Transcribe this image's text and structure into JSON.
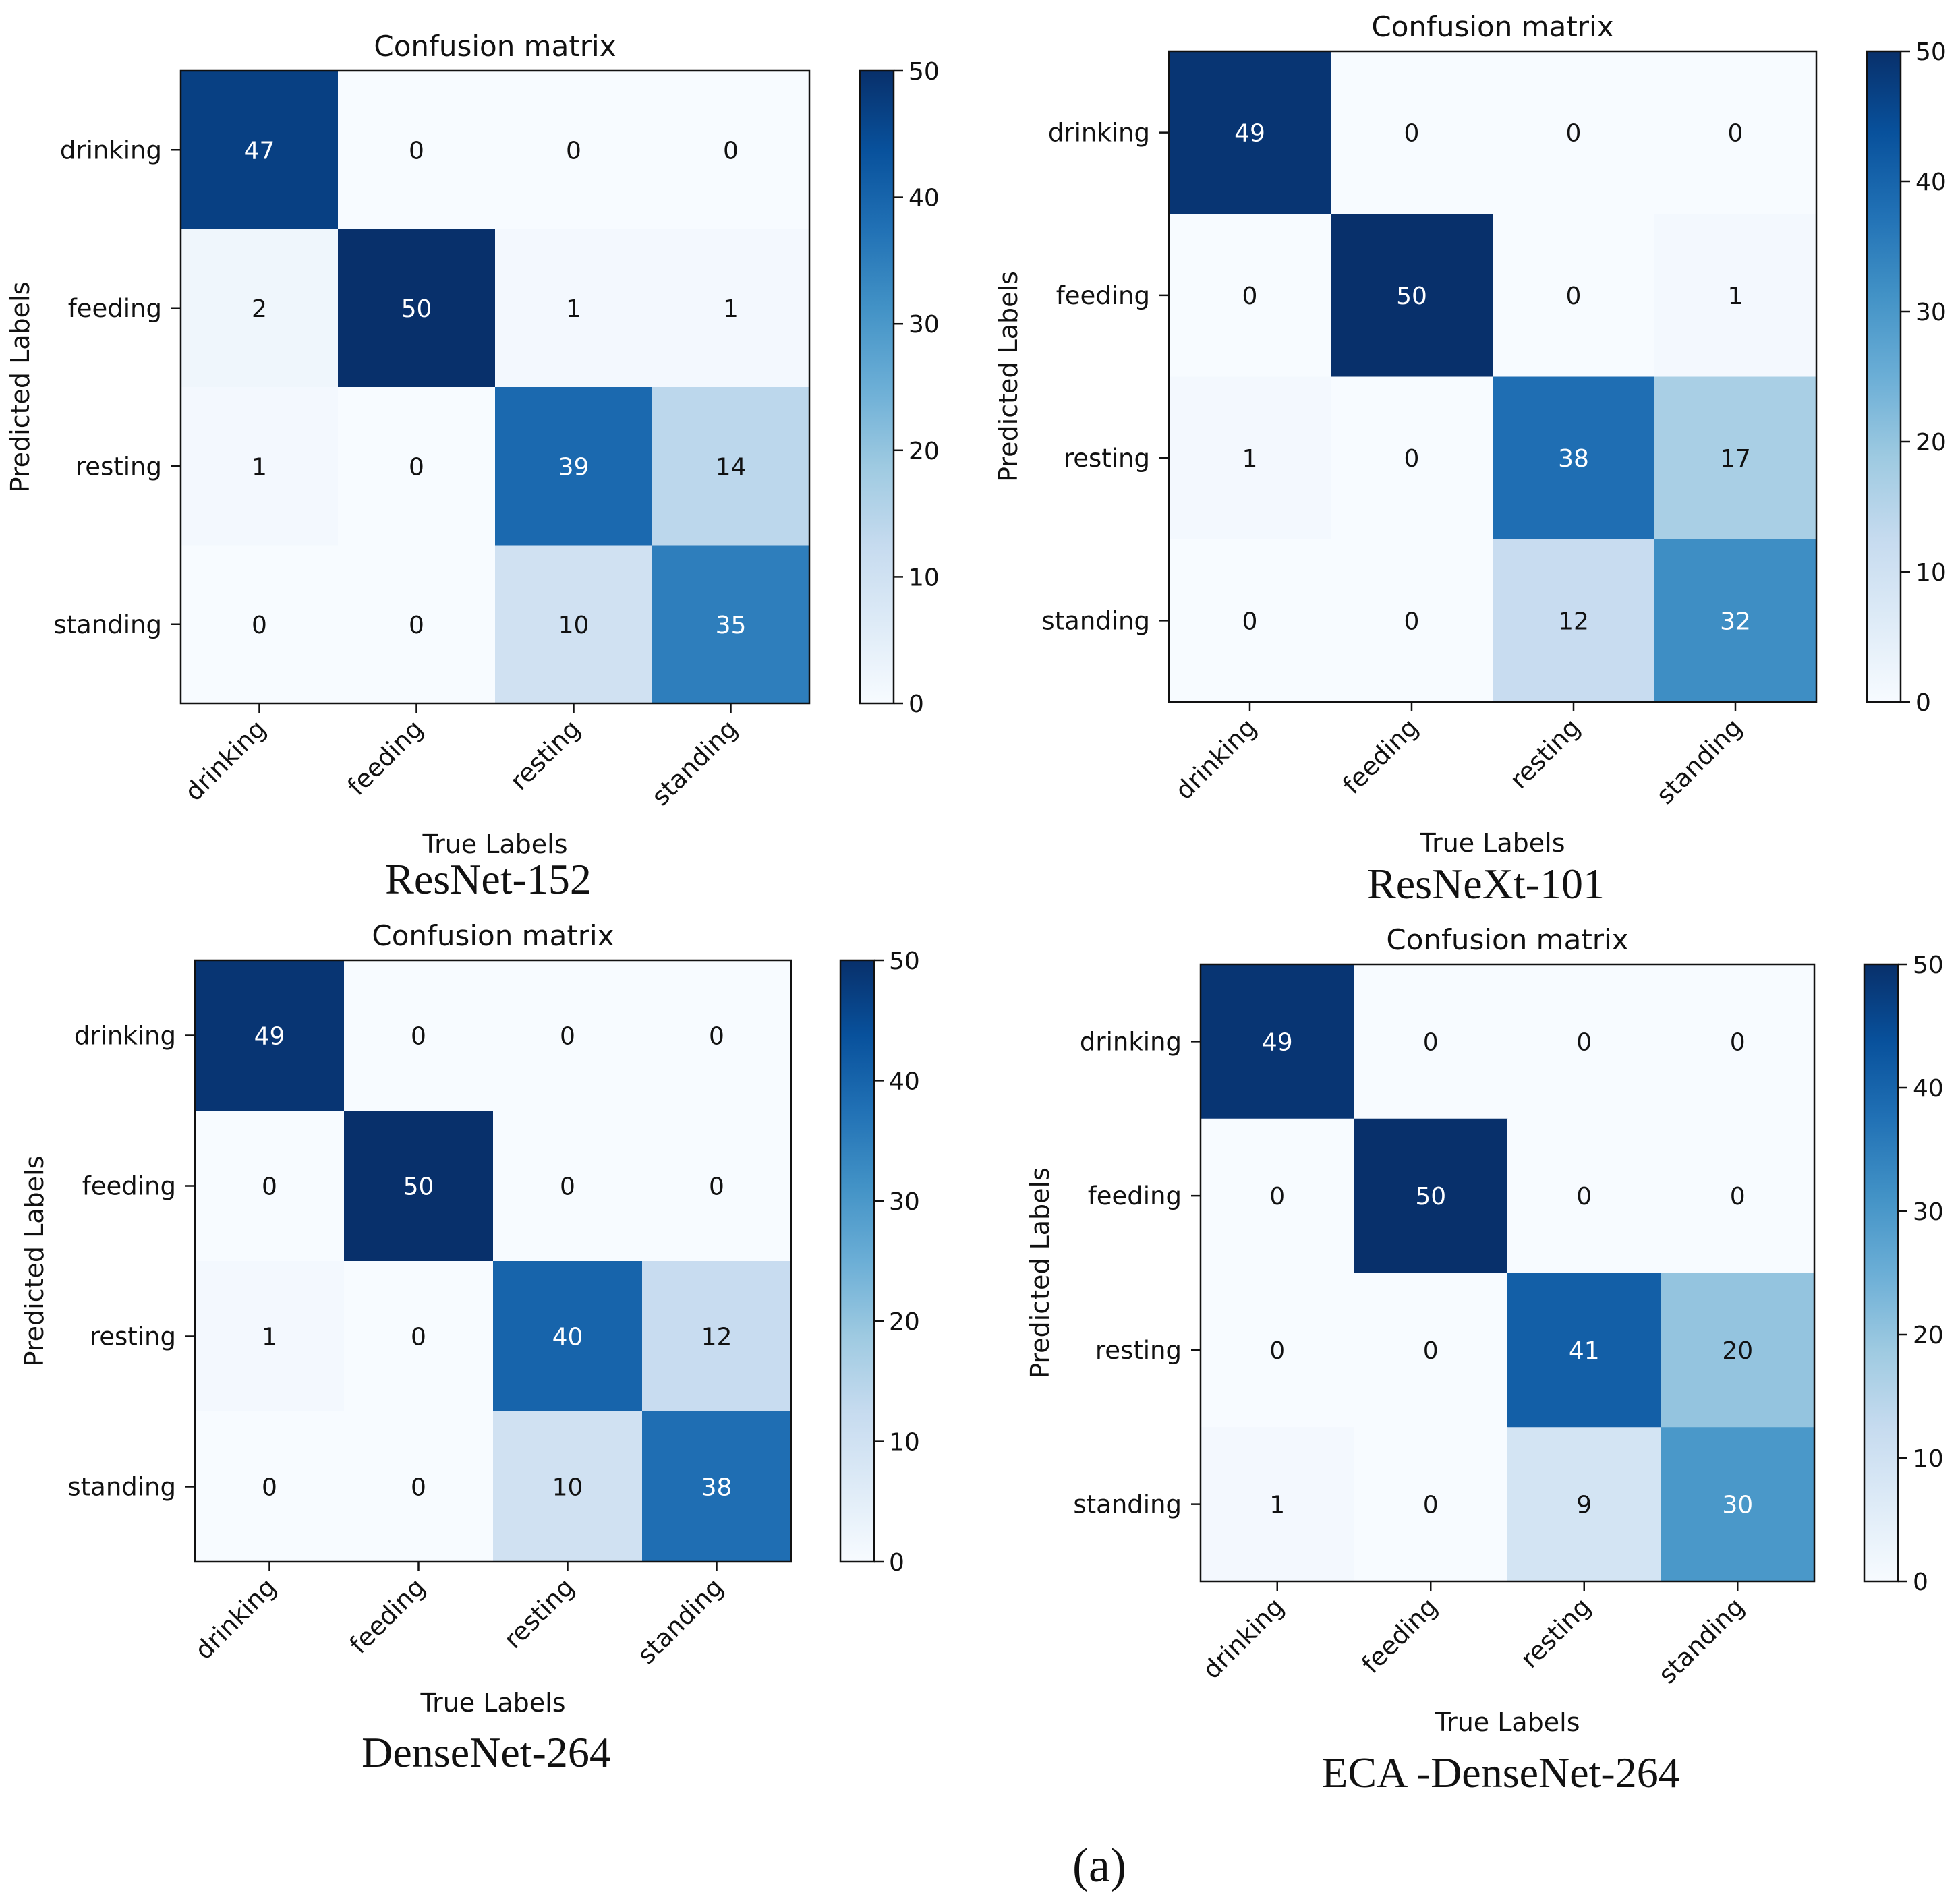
{
  "figure_label": "(a)",
  "chart_data": [
    {
      "type": "heatmap",
      "title": "Confusion matrix",
      "caption": "ResNet-152",
      "xlabel": "True Labels",
      "ylabel": "Predicted Labels",
      "x_categories": [
        "drinking",
        "feeding",
        "resting",
        "standing"
      ],
      "y_categories": [
        "drinking",
        "feeding",
        "resting",
        "standing"
      ],
      "values": [
        [
          47,
          0,
          0,
          0
        ],
        [
          2,
          50,
          1,
          1
        ],
        [
          1,
          0,
          39,
          14
        ],
        [
          0,
          0,
          10,
          35
        ]
      ],
      "colorbar": {
        "range": [
          0,
          50
        ],
        "ticks": [
          0,
          10,
          20,
          30,
          40,
          50
        ],
        "colormap": "Blues"
      }
    },
    {
      "type": "heatmap",
      "title": "Confusion matrix",
      "caption": "ResNeXt-101",
      "xlabel": "True Labels",
      "ylabel": "Predicted Labels",
      "x_categories": [
        "drinking",
        "feeding",
        "resting",
        "standing"
      ],
      "y_categories": [
        "drinking",
        "feeding",
        "resting",
        "standing"
      ],
      "values": [
        [
          49,
          0,
          0,
          0
        ],
        [
          0,
          50,
          0,
          1
        ],
        [
          1,
          0,
          38,
          17
        ],
        [
          0,
          0,
          12,
          32
        ]
      ],
      "colorbar": {
        "range": [
          0,
          50
        ],
        "ticks": [
          0,
          10,
          20,
          30,
          40,
          50
        ],
        "colormap": "Blues"
      }
    },
    {
      "type": "heatmap",
      "title": "Confusion matrix",
      "caption": "DenseNet-264",
      "xlabel": "True Labels",
      "ylabel": "Predicted Labels",
      "x_categories": [
        "drinking",
        "feeding",
        "resting",
        "standing"
      ],
      "y_categories": [
        "drinking",
        "feeding",
        "resting",
        "standing"
      ],
      "values": [
        [
          49,
          0,
          0,
          0
        ],
        [
          0,
          50,
          0,
          0
        ],
        [
          1,
          0,
          40,
          12
        ],
        [
          0,
          0,
          10,
          38
        ]
      ],
      "colorbar": {
        "range": [
          0,
          50
        ],
        "ticks": [
          0,
          10,
          20,
          30,
          40,
          50
        ],
        "colormap": "Blues"
      }
    },
    {
      "type": "heatmap",
      "title": "Confusion matrix",
      "caption": "ECA -DenseNet-264",
      "xlabel": "True Labels",
      "ylabel": "Predicted Labels",
      "x_categories": [
        "drinking",
        "feeding",
        "resting",
        "standing"
      ],
      "y_categories": [
        "drinking",
        "feeding",
        "resting",
        "standing"
      ],
      "values": [
        [
          49,
          0,
          0,
          0
        ],
        [
          0,
          50,
          0,
          0
        ],
        [
          0,
          0,
          41,
          20
        ],
        [
          1,
          0,
          9,
          30
        ]
      ],
      "colorbar": {
        "range": [
          0,
          50
        ],
        "ticks": [
          0,
          10,
          20,
          30,
          40,
          50
        ],
        "colormap": "Blues"
      }
    }
  ]
}
